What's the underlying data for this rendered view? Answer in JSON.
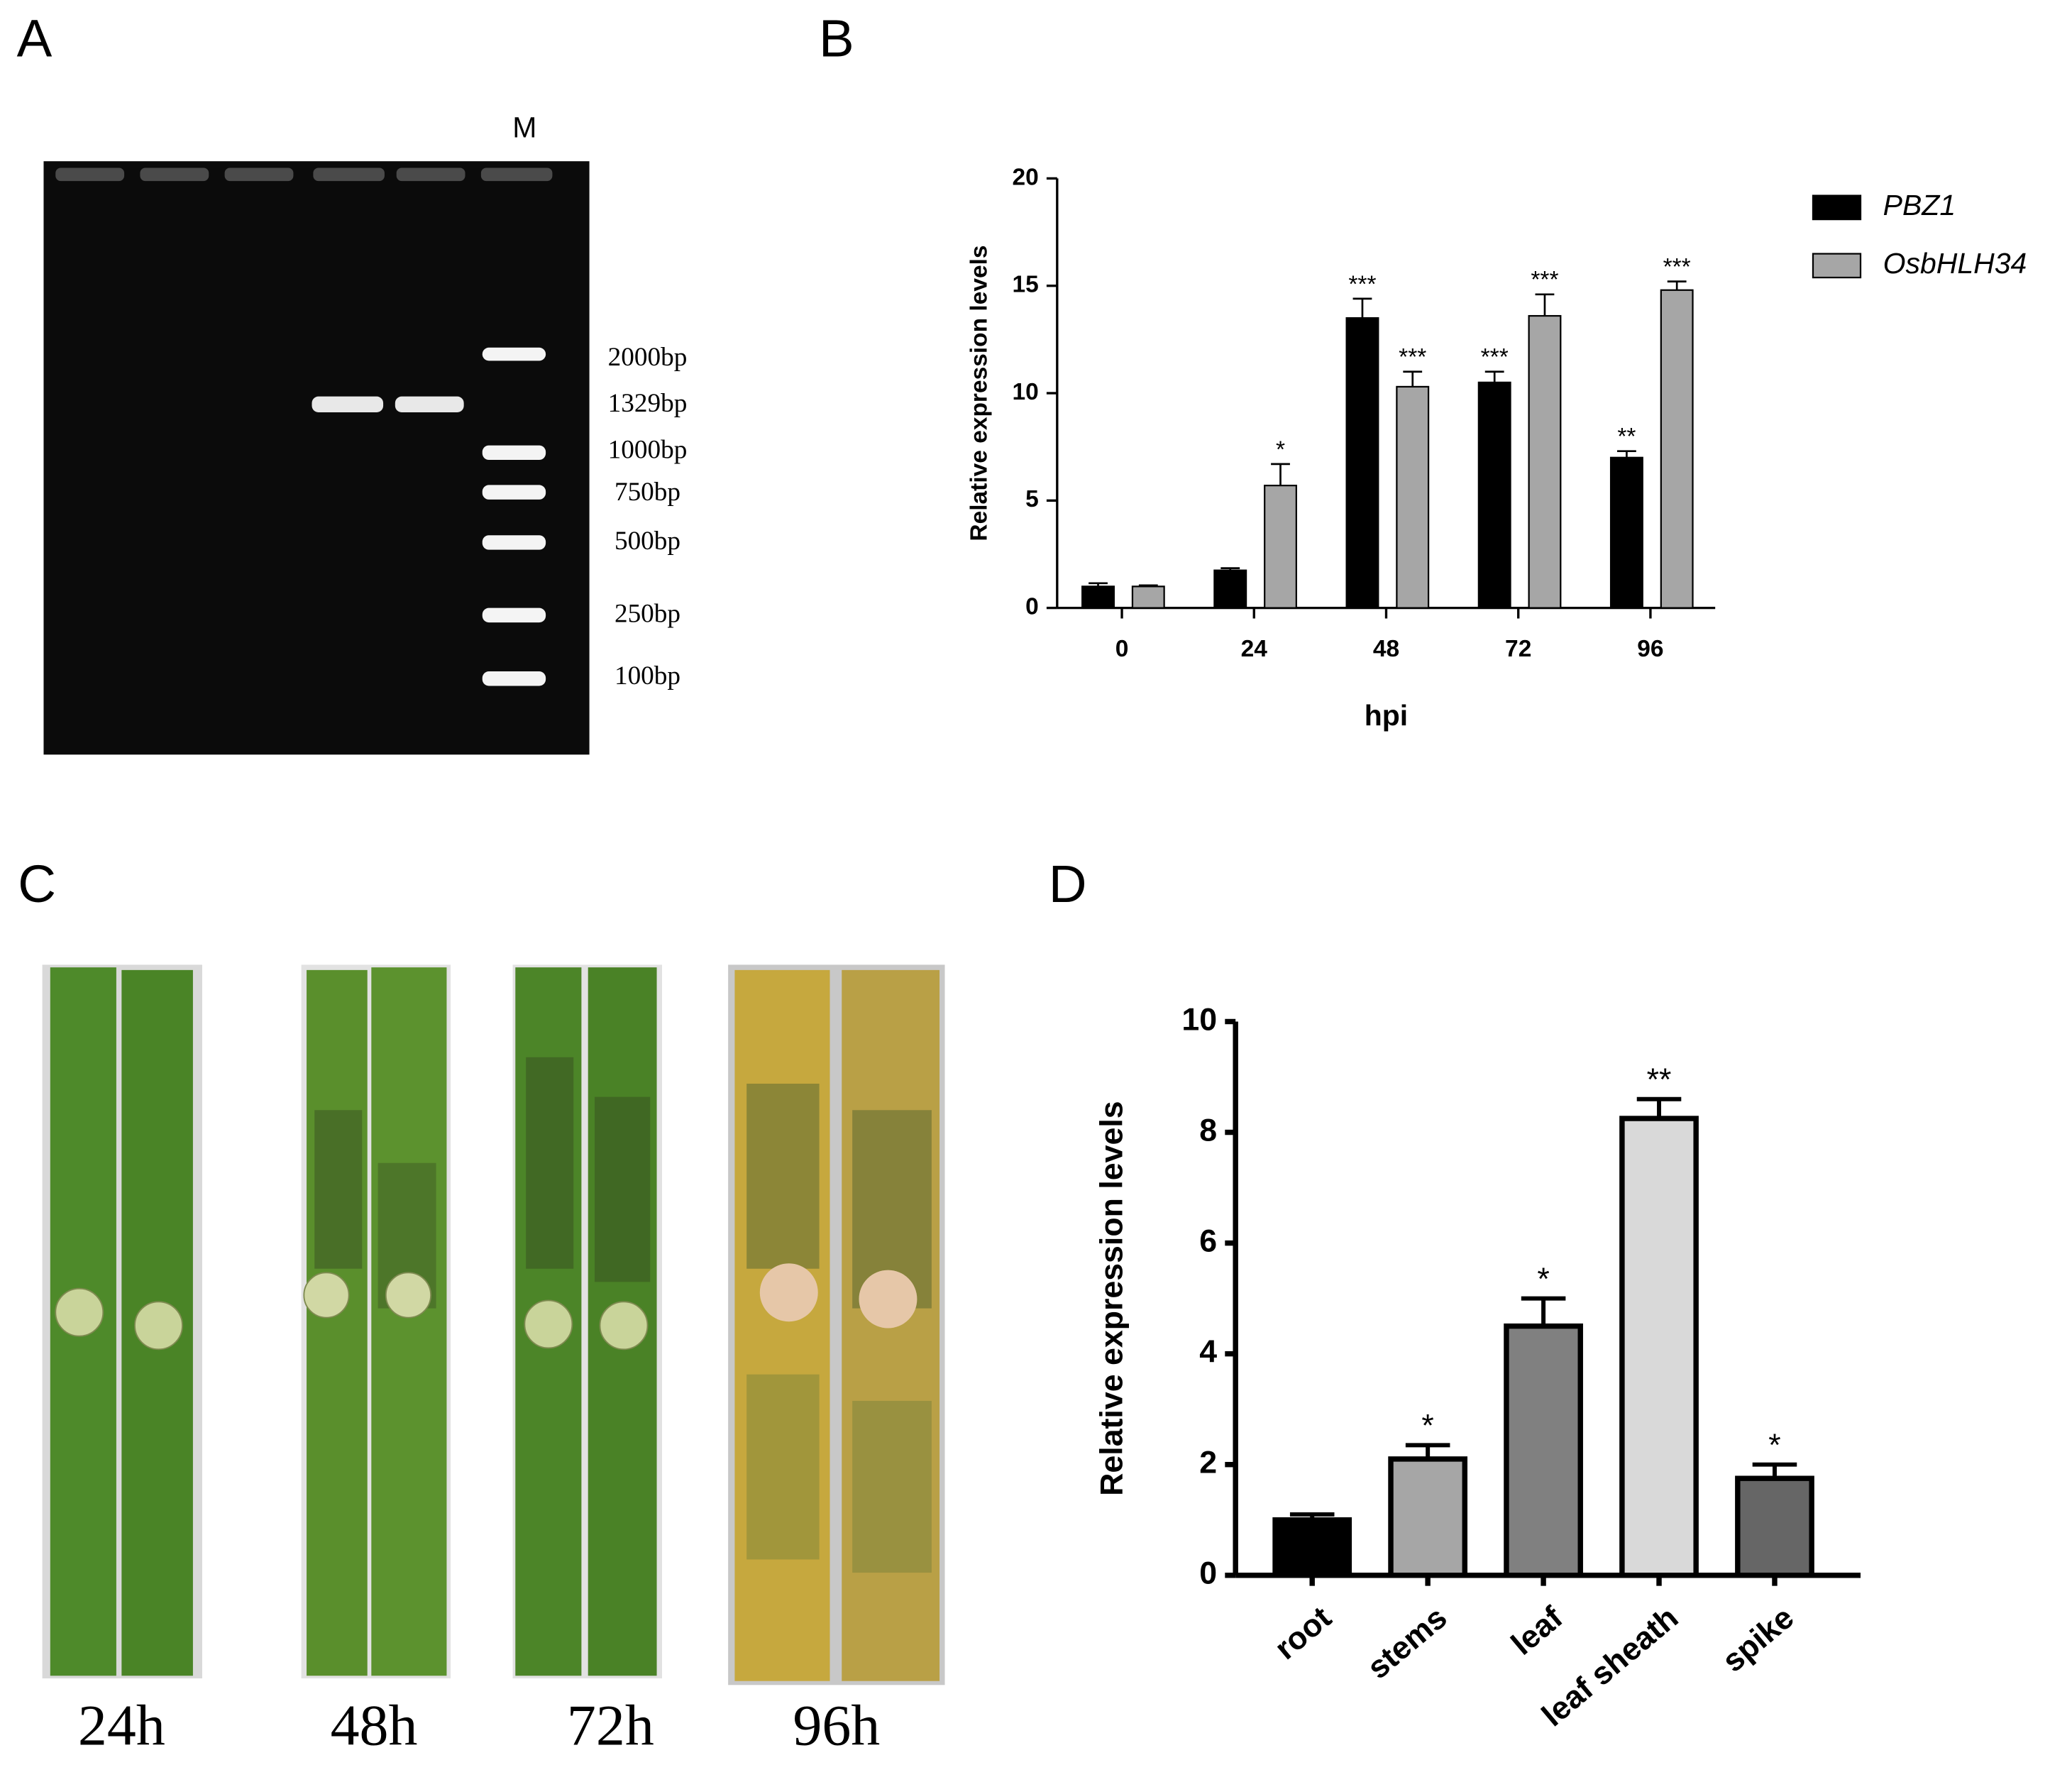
{
  "panel_labels": [
    "A",
    "B",
    "C",
    "D"
  ],
  "gel": {
    "lane_label": "M",
    "markers": [
      "2000bp",
      "1329bp",
      "1000bp",
      "750bp",
      "500bp",
      "250bp",
      "100bp"
    ]
  },
  "leaves": {
    "labels": [
      "24h",
      "48h",
      "72h",
      "96h"
    ]
  },
  "chart_data": [
    {
      "type": "bar",
      "ylabel": "Relative expression levels",
      "xlabel": "hpi",
      "categories": [
        "0",
        "24",
        "48",
        "72",
        "96"
      ],
      "series": [
        {
          "name": "PBZ1",
          "color": "#000000",
          "values": [
            1.0,
            1.75,
            13.5,
            10.5,
            7.0
          ],
          "errors": [
            0.15,
            0.1,
            0.9,
            0.5,
            0.3
          ],
          "significance": [
            null,
            null,
            "***",
            "***",
            "**"
          ]
        },
        {
          "name": "OsbHLH34",
          "color": "#a6a6a6",
          "values": [
            1.0,
            5.7,
            10.3,
            13.6,
            14.8
          ],
          "errors": [
            0.05,
            1.0,
            0.7,
            1.0,
            0.4
          ],
          "significance": [
            null,
            "*",
            "***",
            "***",
            "***"
          ]
        }
      ],
      "ylim": [
        0,
        20
      ],
      "yticks": [
        0,
        5,
        10,
        15,
        20
      ],
      "legend": "right"
    },
    {
      "type": "bar",
      "ylabel": "Relative expression levels",
      "categories": [
        "root",
        "stems",
        "leaf",
        "leaf sheath",
        "spike"
      ],
      "values": [
        1.0,
        2.1,
        4.5,
        8.25,
        1.75
      ],
      "errors": [
        0.1,
        0.25,
        0.5,
        0.35,
        0.25
      ],
      "colors": [
        "#000000",
        "#a6a6a6",
        "#808080",
        "#d9d9d9",
        "#666666"
      ],
      "significance": [
        null,
        "*",
        "*",
        "**",
        "*"
      ],
      "ylim": [
        0,
        10
      ],
      "yticks": [
        0,
        2,
        4,
        6,
        8,
        10
      ]
    }
  ]
}
